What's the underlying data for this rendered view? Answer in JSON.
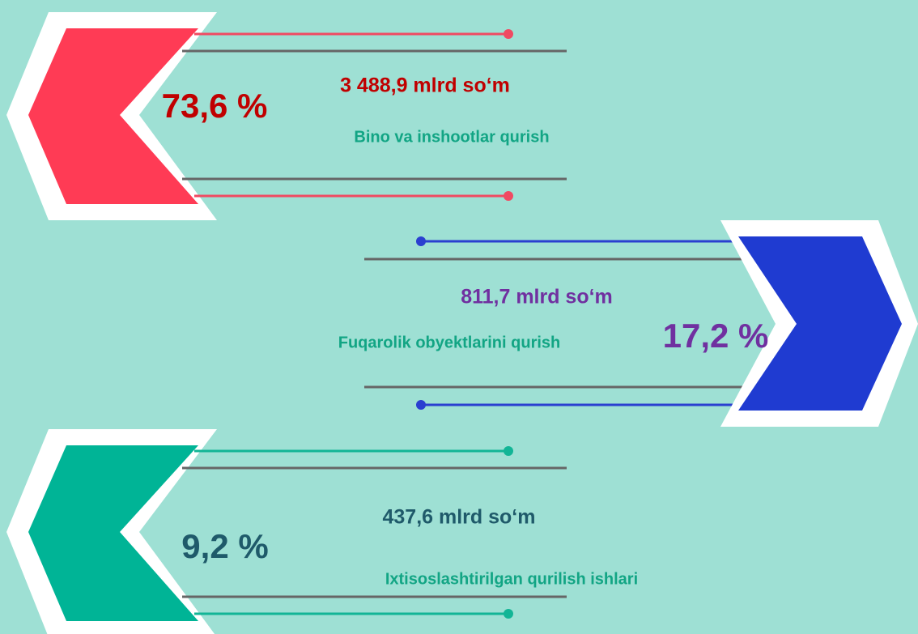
{
  "items": [
    {
      "percent": "73,6 %",
      "amount": "3 488,9 mlrd so‘m",
      "label": "Bino va inshootlar qurish"
    },
    {
      "percent": "17,2 %",
      "amount": "811,7 mlrd so‘m",
      "label": "Fuqarolik obyektlarini qurish"
    },
    {
      "percent": "9,2 %",
      "amount": "437,6 mlrd so‘m",
      "label": "Ixtisoslashtirilgan qurilish ishlari"
    }
  ]
}
